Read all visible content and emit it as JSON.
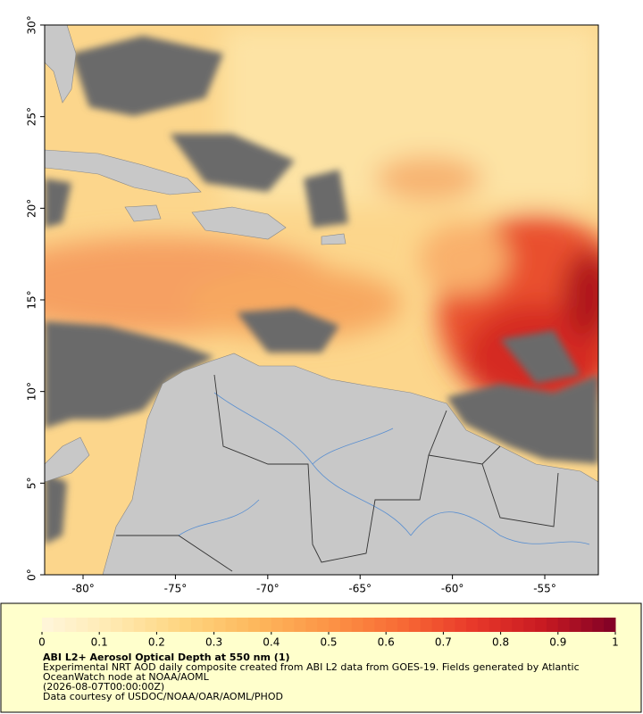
{
  "chart_data": {
    "type": "map",
    "title": "ABI L2+ Aerosol Optical Depth at 550 nm (1)",
    "description": "Experimental NRT AOD daily composite created from ABI L2 data from GOES-19. Fields generated by Atlantic OceanWatch node at NOAA/AOML",
    "date": "(2026-08-07T00:00:00Z)",
    "credit": "Data courtesy of USDOC/NOAA/OAR/AOML/PHOD",
    "xlim": [
      -82.08,
      -52.1
    ],
    "ylim": [
      0,
      30
    ],
    "xticks": [
      {
        "value": -80,
        "label": "-80°"
      },
      {
        "value": -75,
        "label": "-75°"
      },
      {
        "value": -70,
        "label": "-70°"
      },
      {
        "value": -65,
        "label": "-65°"
      },
      {
        "value": -60,
        "label": "-60°"
      },
      {
        "value": -55,
        "label": "-55°"
      }
    ],
    "yticks": [
      {
        "value": 0,
        "label": "0°"
      },
      {
        "value": 5,
        "label": "5°"
      },
      {
        "value": 10,
        "label": "10°"
      },
      {
        "value": 15,
        "label": "15°"
      },
      {
        "value": 20,
        "label": "20°"
      },
      {
        "value": 25,
        "label": "25°"
      },
      {
        "value": 30,
        "label": "30°"
      }
    ],
    "colorbar": {
      "lim": [
        0,
        1
      ],
      "ticks": [
        0,
        0.1,
        0.2,
        0.3,
        0.4,
        0.5,
        0.6,
        0.7,
        0.8,
        0.9,
        1
      ],
      "colors": [
        "#fff6dc",
        "#ffe9b0",
        "#fed47e",
        "#fdb75c",
        "#fc9446",
        "#f86b35",
        "#e8392a",
        "#c81a22",
        "#7f0026"
      ]
    }
  }
}
